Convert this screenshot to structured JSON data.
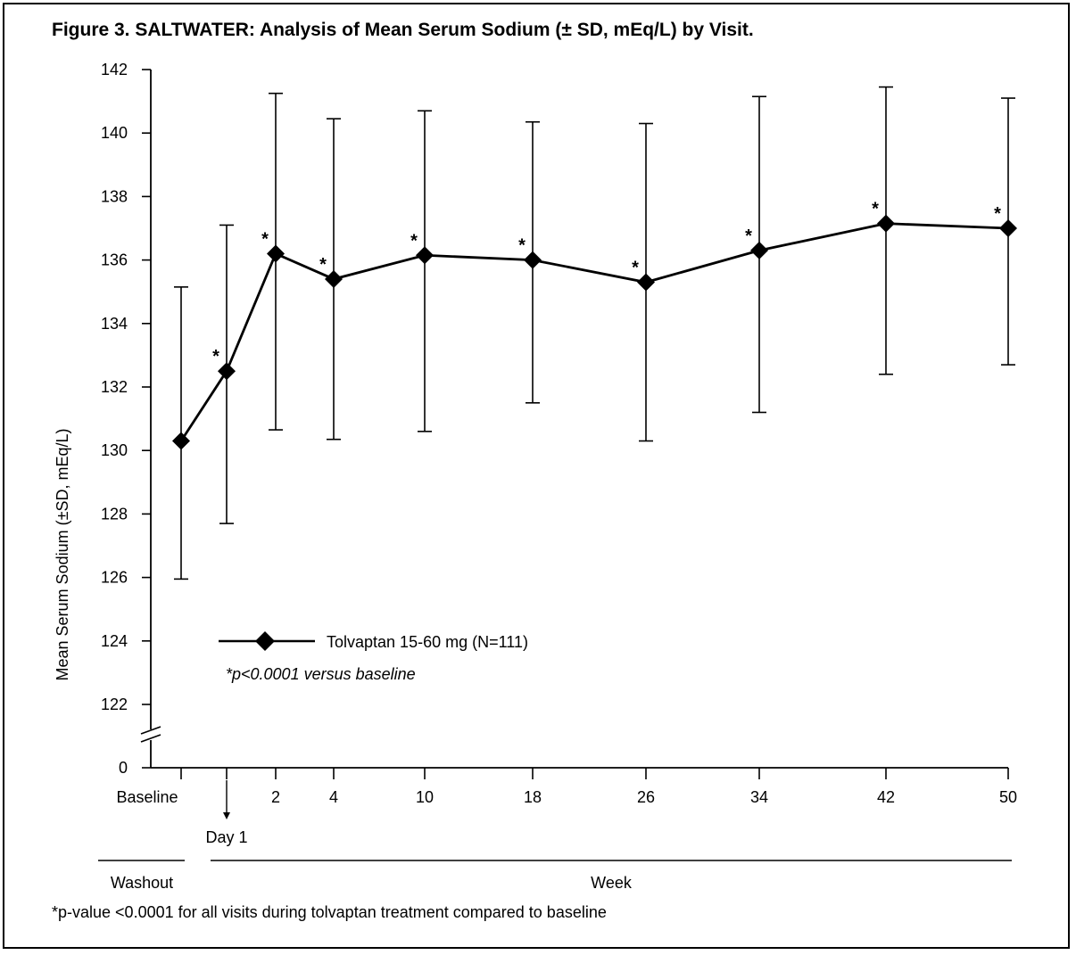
{
  "chart_data": {
    "type": "line",
    "title": "Figure 3.  SALTWATER: Analysis of Mean Serum Sodium (± SD, mEq/L) by Visit.",
    "ylabel": "Mean Serum Sodium (±SD, mEq/L)",
    "ylim": [
      122,
      142
    ],
    "y_break_label": "0",
    "y_ticks": [
      122,
      124,
      126,
      128,
      130,
      132,
      134,
      136,
      138,
      140,
      142
    ],
    "visits": [
      {
        "key": "baseline",
        "label": "Baseline",
        "mean": 130.3,
        "upper": 135.15,
        "lower": 125.95,
        "sig": false,
        "tick": true
      },
      {
        "key": "day1",
        "label": "",
        "mean": 132.5,
        "upper": 137.1,
        "lower": 127.7,
        "sig": true,
        "tick": true
      },
      {
        "key": "w2",
        "label": "2",
        "mean": 136.2,
        "upper": 141.25,
        "lower": 130.65,
        "sig": true,
        "tick": true
      },
      {
        "key": "w4",
        "label": "4",
        "mean": 135.4,
        "upper": 140.45,
        "lower": 130.35,
        "sig": true,
        "tick": true
      },
      {
        "key": "w10",
        "label": "10",
        "mean": 136.15,
        "upper": 140.7,
        "lower": 130.6,
        "sig": true,
        "tick": true
      },
      {
        "key": "w18",
        "label": "18",
        "mean": 136.0,
        "upper": 140.35,
        "lower": 131.5,
        "sig": true,
        "tick": true
      },
      {
        "key": "w26",
        "label": "26",
        "mean": 135.3,
        "upper": 140.3,
        "lower": 130.3,
        "sig": true,
        "tick": true
      },
      {
        "key": "w34",
        "label": "34",
        "mean": 136.3,
        "upper": 141.15,
        "lower": 131.2,
        "sig": true,
        "tick": true
      },
      {
        "key": "w42",
        "label": "42",
        "mean": 137.15,
        "upper": 141.45,
        "lower": 132.4,
        "sig": true,
        "tick": true
      },
      {
        "key": "w50",
        "label": "50",
        "mean": 137.0,
        "upper": 141.1,
        "lower": 132.7,
        "sig": true,
        "tick": true
      }
    ],
    "significance_marker": "*",
    "day1_label": "Day 1",
    "series": [
      {
        "name": "Tolvaptan 15-60 mg (N=111)"
      }
    ],
    "legend_note": "*p<0.0001 versus baseline",
    "legend_placement": "bottom-left",
    "period_labels": {
      "washout": "Washout",
      "week": "Week"
    },
    "footnote": "*p-value <0.0001 for all visits during tolvaptan treatment compared to baseline",
    "grid": false,
    "colors": {
      "line": "#000000",
      "background": "#ffffff"
    }
  }
}
